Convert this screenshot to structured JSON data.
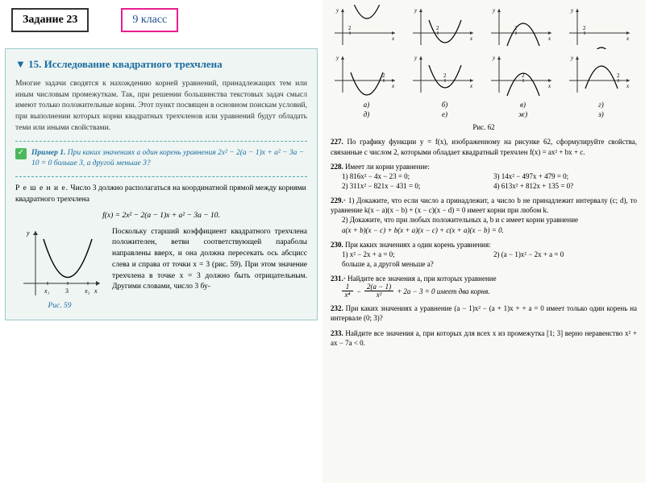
{
  "header": {
    "task": "Задание 23",
    "class": "9 класс"
  },
  "section": {
    "title": "▼ 15. Исследование квадратного трехчлена",
    "intro": "Многие задачи сводятся к нахождению корней уравнений, принадлежащих тем или иным числовым промежуткам. Так, при решении большинства текстовых задач смысл имеют только положительные корни. Этот пункт посвящен в основном поискам условий, при выполнении которых корни квадратных трехчленов или уравнений будут обладать теми или иными свойствами.",
    "example_label": "Пример 1.",
    "example_text": "При каких значениях a один корень уравнения 2x² − 2(a − 1)x + a² − 3a − 10 = 0 больше 3, а другой меньше 3?",
    "solution_label": "Р е ш е н и е.",
    "solution_p1": "Число 3 должно располагаться на координатной прямой между корнями квадратного трехчлена",
    "fx": "f(x) = 2x² − 2(a − 1)x + a² − 3a − 10.",
    "solution_p2": "Поскольку старший коэффициент квадратного трехчлена положителен, ветви соответствующей параболы направлены вверх, и она должна пересекать ось абсцисс слева и справа от точки x = 3 (рис. 59). При этом значение трехчлена в точке x = 3 должно быть отрицательным. Другими словами, число 3 бу-",
    "fig59_caption": "Рис. 59"
  },
  "right": {
    "fig_labels": [
      "а)",
      "б)",
      "в)",
      "г)",
      "д)",
      "е)",
      "ж)",
      "з)"
    ],
    "fig62_caption": "Рис. 62",
    "p227": {
      "num": "227.",
      "text": "По графику функции y = f(x), изображенному на рисунке 62, сформулируйте свойства, связанные с числом 2, которыми обладает квадратный трехчлен f(x) = ax² + bx + c."
    },
    "p228": {
      "num": "228.",
      "text": "Имеет ли корни уравнение:",
      "items": [
        "1) 816x² − 4x − 23 = 0;",
        "3) 14x² − 497x + 479 = 0;",
        "2) 311x² − 821x − 431 = 0;",
        "4) 613x² + 812x + 135 = 0?"
      ]
    },
    "p229": {
      "num": "229.",
      "part1": "1) Докажите, что если число a принадлежит, а число b не принадлежит интервалу (c; d), то уравнение k(x − a)(x − b) + (x − c)(x − d) = 0 имеет корни при любом k.",
      "part2": "2) Докажите, что при любых положительных a, b и c имеет корни уравнение",
      "eq": "a(x + b)(x − c) + b(x + a)(x − c) + c(x + a)(x − b) = 0."
    },
    "p230": {
      "num": "230.",
      "text": "При каких значениях a один корень уравнения:",
      "item1": "1) x² − 2x + a = 0;",
      "item2": "2) (a − 1)x² − 2x + a = 0",
      "tail": "больше a, а другой меньше a?"
    },
    "p231": {
      "num": "231.",
      "text": "Найдите все значения a, при которых уравнение",
      "frac_lhs_num": "1",
      "frac_lhs_den": "x⁴",
      "frac_mid_num": "2(a − 1)",
      "frac_mid_den": "x²",
      "tail": " + 2a − 3 = 0 имеет два корня."
    },
    "p232": {
      "num": "232.",
      "text": "При каких значениях a уравнение (a − 1)x² − (a + 1)x + + a = 0 имеет только один корень на интервале (0; 3)?"
    },
    "p233": {
      "num": "233.",
      "text": "Найдите все значения a, при которых для всех x из промежутка [1; 3] верно неравенство x² + ax − 7a < 0."
    }
  },
  "graphs": {
    "row1": [
      {
        "dir": "up",
        "vertex_y": 1.2,
        "tick_rel": "left"
      },
      {
        "dir": "up",
        "vertex_y": -0.8,
        "tick_rel": "inside"
      },
      {
        "dir": "down",
        "vertex_y": 0.8,
        "tick_rel": "inside"
      },
      {
        "dir": "down",
        "vertex_y": -1.2,
        "tick_rel": "left"
      }
    ],
    "row2": [
      {
        "dir": "up",
        "vertex_y": -1.2,
        "tick_rel": "right"
      },
      {
        "dir": "up",
        "vertex_y": -0.6,
        "tick_rel": "right_vertex"
      },
      {
        "dir": "down",
        "vertex_y": 0.6,
        "tick_rel": "right_vertex"
      },
      {
        "dir": "down",
        "vertex_y": 1.2,
        "tick_rel": "right"
      }
    ],
    "fig59": {
      "x1_label": "x₁",
      "x2_label": "x₂",
      "three": "3",
      "y_label": "y",
      "x_label": "x"
    }
  },
  "colors": {
    "axis": "#333333",
    "curve": "#000000",
    "teal": "#1a6b9e"
  }
}
